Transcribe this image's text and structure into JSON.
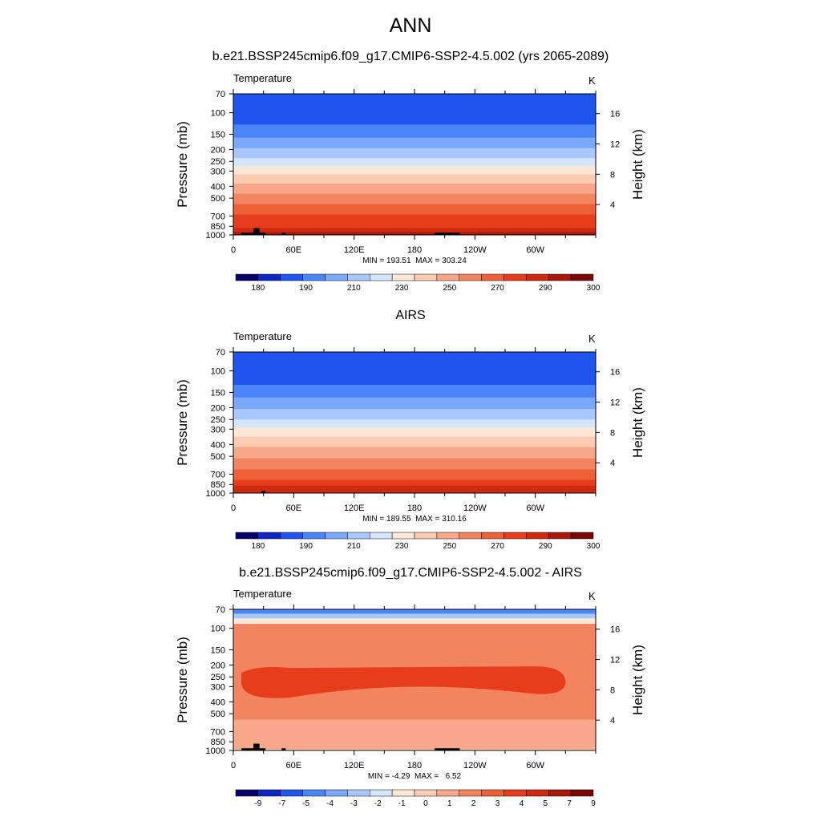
{
  "title": "ANN",
  "chart_data": [
    {
      "type": "heatmap",
      "title": "b.e21.BSSP245cmip6.f09_g17.CMIP6-SSP2-4.5.002 (yrs 2065-2089)",
      "variable": "Temperature",
      "units": "K",
      "ylabel": "Pressure (mb)",
      "ylabel_right": "Height (km)",
      "x_ticks": [
        "0",
        "60E",
        "120E",
        "180",
        "120W",
        "60W"
      ],
      "x_tick_values": [
        0,
        60,
        120,
        180,
        240,
        300
      ],
      "xlim": [
        0,
        360
      ],
      "y_ticks": [
        "70",
        "100",
        "150",
        "200",
        "250",
        "300",
        "400",
        "500",
        "700",
        "850",
        "1000"
      ],
      "y_tick_values": [
        70,
        100,
        150,
        200,
        250,
        300,
        400,
        500,
        700,
        850,
        1000
      ],
      "ylim": [
        1000,
        70
      ],
      "y_scale": "log",
      "right_ticks": [
        "16",
        "12",
        "8",
        "4"
      ],
      "right_tick_values": [
        16,
        12,
        8,
        4
      ],
      "stats": "MIN = 193.51  MAX = 303.24",
      "colorbar_labels": [
        "180",
        "190",
        "210",
        "230",
        "250",
        "270",
        "290",
        "300"
      ],
      "colors": [
        "#08006a",
        "#0c28c0",
        "#1f55ee",
        "#4a86f9",
        "#7aa8fb",
        "#a8c7fd",
        "#d5e5fe",
        "#fde7d6",
        "#fbcbb2",
        "#f7a88a",
        "#f28460",
        "#ee6038",
        "#e73d1c",
        "#ce2a0e",
        "#a8190c",
        "#7a0605"
      ],
      "levels": [
        {
          "p": 70,
          "color": "#1f55ee"
        },
        {
          "p": 100,
          "color": "#1f55ee"
        },
        {
          "p": 125,
          "color": "#4a86f9"
        },
        {
          "p": 160,
          "color": "#7aa8fb"
        },
        {
          "p": 195,
          "color": "#a8c7fd"
        },
        {
          "p": 235,
          "color": "#d5e5fe"
        },
        {
          "p": 275,
          "color": "#fde7d6"
        },
        {
          "p": 320,
          "color": "#fbcbb2"
        },
        {
          "p": 380,
          "color": "#f7a88a"
        },
        {
          "p": 460,
          "color": "#f28460"
        },
        {
          "p": 560,
          "color": "#ee6038"
        },
        {
          "p": 680,
          "color": "#e73d1c"
        },
        {
          "p": 790,
          "color": "#e73d1c"
        },
        {
          "p": 880,
          "color": "#ce2a0e"
        },
        {
          "p": 950,
          "color": "#a8190c"
        }
      ],
      "terrain": [
        [
          8,
          32,
          960
        ],
        [
          20,
          26,
          880
        ],
        [
          48,
          52,
          960
        ],
        [
          200,
          225,
          960
        ]
      ]
    },
    {
      "type": "heatmap",
      "title": "AIRS",
      "variable": "Temperature",
      "units": "K",
      "ylabel": "Pressure (mb)",
      "ylabel_right": "Height (km)",
      "x_ticks": [
        "0",
        "60E",
        "120E",
        "180",
        "120W",
        "60W"
      ],
      "x_tick_values": [
        0,
        60,
        120,
        180,
        240,
        300
      ],
      "xlim": [
        0,
        360
      ],
      "y_ticks": [
        "70",
        "100",
        "150",
        "200",
        "250",
        "300",
        "400",
        "500",
        "700",
        "850",
        "1000"
      ],
      "y_tick_values": [
        70,
        100,
        150,
        200,
        250,
        300,
        400,
        500,
        700,
        850,
        1000
      ],
      "ylim": [
        1000,
        70
      ],
      "y_scale": "log",
      "right_ticks": [
        "16",
        "12",
        "8",
        "4"
      ],
      "right_tick_values": [
        16,
        12,
        8,
        4
      ],
      "stats": "MIN = 189.55  MAX = 310.16",
      "colorbar_labels": [
        "180",
        "190",
        "210",
        "230",
        "250",
        "270",
        "290",
        "300"
      ],
      "colors": [
        "#08006a",
        "#0c28c0",
        "#1f55ee",
        "#4a86f9",
        "#7aa8fb",
        "#a8c7fd",
        "#d5e5fe",
        "#fde7d6",
        "#fbcbb2",
        "#f7a88a",
        "#f28460",
        "#ee6038",
        "#e73d1c",
        "#ce2a0e",
        "#a8190c",
        "#7a0605"
      ],
      "levels": [
        {
          "p": 70,
          "color": "#1f55ee"
        },
        {
          "p": 100,
          "color": "#1f55ee"
        },
        {
          "p": 130,
          "color": "#4a86f9"
        },
        {
          "p": 165,
          "color": "#7aa8fb"
        },
        {
          "p": 205,
          "color": "#a8c7fd"
        },
        {
          "p": 250,
          "color": "#d5e5fe"
        },
        {
          "p": 290,
          "color": "#fde7d6"
        },
        {
          "p": 345,
          "color": "#fbcbb2"
        },
        {
          "p": 420,
          "color": "#f7a88a"
        },
        {
          "p": 520,
          "color": "#f28460"
        },
        {
          "p": 640,
          "color": "#ee6038"
        },
        {
          "p": 780,
          "color": "#e73d1c"
        },
        {
          "p": 870,
          "color": "#ce2a0e"
        }
      ],
      "terrain": [
        [
          28,
          32,
          960
        ]
      ]
    },
    {
      "type": "heatmap",
      "title": "b.e21.BSSP245cmip6.f09_g17.CMIP6-SSP2-4.5.002 - AIRS",
      "variable": "Temperature",
      "units": "K",
      "ylabel": "Pressure (mb)",
      "ylabel_right": "Height (km)",
      "x_ticks": [
        "0",
        "60E",
        "120E",
        "180",
        "120W",
        "60W"
      ],
      "x_tick_values": [
        0,
        60,
        120,
        180,
        240,
        300
      ],
      "xlim": [
        0,
        360
      ],
      "y_ticks": [
        "70",
        "100",
        "150",
        "200",
        "250",
        "300",
        "400",
        "500",
        "700",
        "850",
        "1000"
      ],
      "y_tick_values": [
        70,
        100,
        150,
        200,
        250,
        300,
        400,
        500,
        700,
        850,
        1000
      ],
      "ylim": [
        1000,
        70
      ],
      "y_scale": "log",
      "right_ticks": [
        "16",
        "12",
        "8",
        "4"
      ],
      "right_tick_values": [
        16,
        12,
        8,
        4
      ],
      "stats": "MIN = -4.29  MAX =   6.52",
      "colorbar_labels": [
        "-9",
        "-7",
        "-5",
        "-4",
        "-3",
        "-2",
        "-1",
        "0",
        "1",
        "2",
        "3",
        "4",
        "5",
        "7",
        "9"
      ],
      "colors": [
        "#08006a",
        "#0c28c0",
        "#1f55ee",
        "#4a86f9",
        "#7aa8fb",
        "#a8c7fd",
        "#d5e5fe",
        "#fde7d6",
        "#fbcbb2",
        "#f7a88a",
        "#f28460",
        "#ee6038",
        "#e73d1c",
        "#ce2a0e",
        "#a8190c",
        "#7a0605"
      ],
      "levels": [
        {
          "p": 70,
          "color": "#4a86f9"
        },
        {
          "p": 76,
          "color": "#a8c7fd"
        },
        {
          "p": 83,
          "color": "#fde7d6"
        },
        {
          "p": 92,
          "color": "#f28460"
        },
        {
          "p": 560,
          "color": "#f7a88a"
        },
        {
          "p": 980,
          "color": "#fde7d6"
        }
      ],
      "warm_core": {
        "p_top": 205,
        "p_bottom": 370,
        "x_start": 8,
        "x_end": 330,
        "color": "#e73d1c"
      },
      "terrain": [
        [
          8,
          32,
          960
        ],
        [
          20,
          26,
          880
        ],
        [
          48,
          52,
          960
        ],
        [
          200,
          225,
          960
        ]
      ]
    }
  ]
}
